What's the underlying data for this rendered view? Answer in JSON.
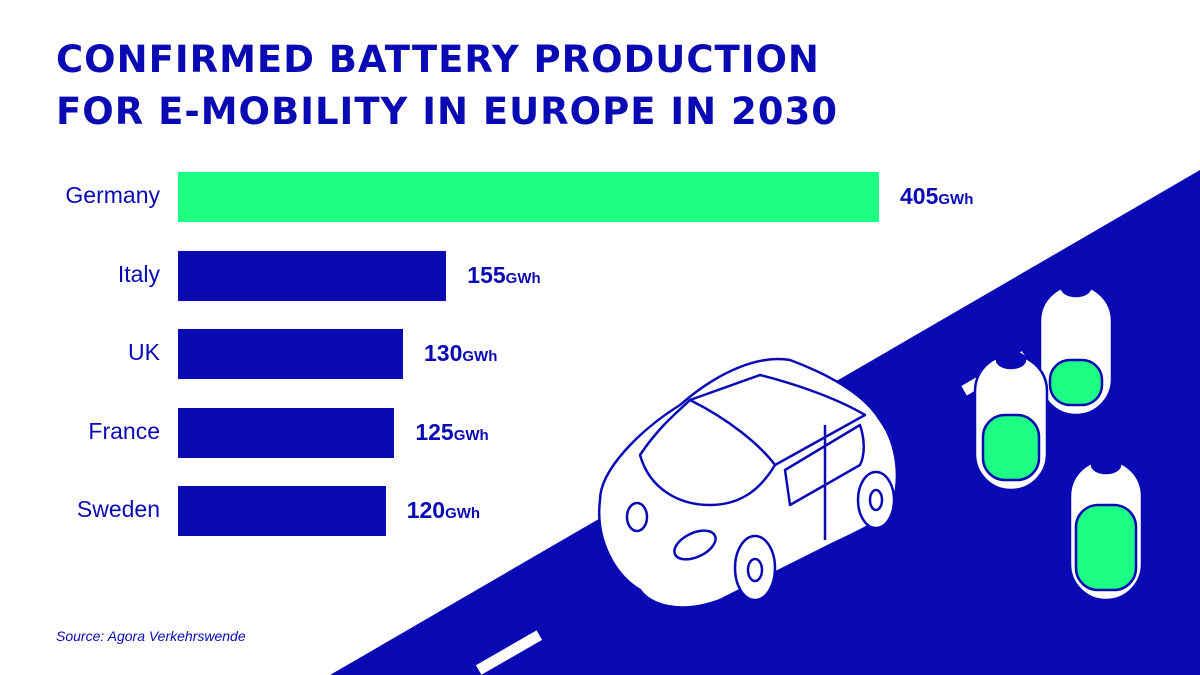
{
  "title_line1": "CONFIRMED BATTERY PRODUCTION",
  "title_line2": "FOR E-MOBILITY IN EUROPE IN 2030",
  "source": "Source: Agora Verkehrswende",
  "colors": {
    "primary": "#0a0ab4",
    "highlight": "#1cff84",
    "background": "#ffffff"
  },
  "illustration": [
    "road",
    "car",
    "battery-icons"
  ],
  "chart_data": {
    "type": "bar",
    "orientation": "horizontal",
    "title": "CONFIRMED BATTERY PRODUCTION FOR E-MOBILITY IN EUROPE IN 2030",
    "categories": [
      "Germany",
      "Italy",
      "UK",
      "France",
      "Sweden"
    ],
    "values": [
      405,
      155,
      130,
      125,
      120
    ],
    "unit": "GWh",
    "highlight": "Germany",
    "grid": false,
    "xlim": [
      0,
      405
    ]
  }
}
